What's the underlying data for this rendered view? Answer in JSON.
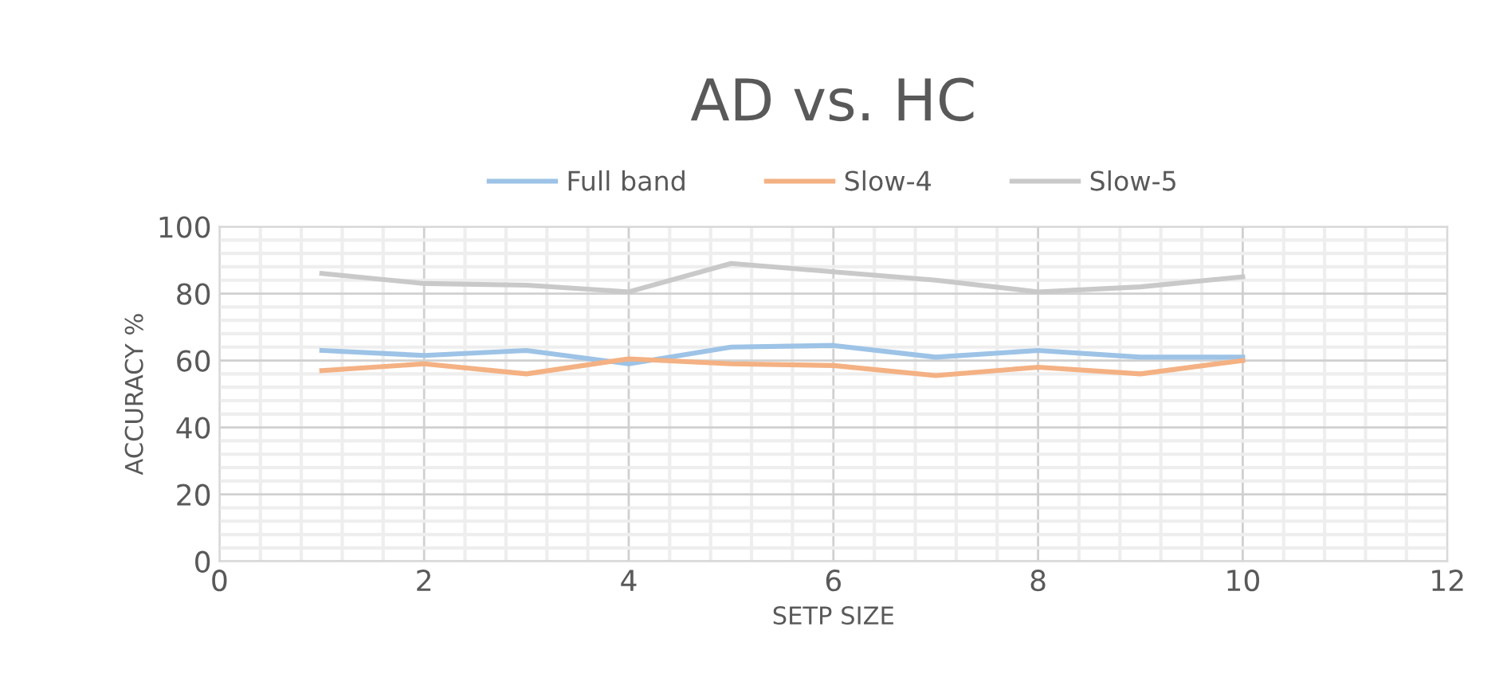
{
  "chart_data": {
    "type": "line",
    "title": "AD vs. HC",
    "xlabel": "SETP SIZE",
    "ylabel": "ACCURACY %",
    "x": [
      1,
      2,
      3,
      4,
      5,
      6,
      7,
      8,
      9,
      10
    ],
    "series": [
      {
        "name": "Full band",
        "color": "#9dc3e6",
        "values": [
          63,
          61.5,
          63,
          59,
          64,
          64.5,
          61,
          63,
          61,
          61
        ]
      },
      {
        "name": "Slow-4",
        "color": "#f4b183",
        "values": [
          57,
          59,
          56,
          60.5,
          59,
          58.5,
          55.5,
          58,
          56,
          60
        ]
      },
      {
        "name": "Slow-5",
        "color": "#c9c9c9",
        "values": [
          86,
          83,
          82.5,
          80.5,
          89,
          86.5,
          84,
          80.5,
          82,
          85
        ]
      }
    ],
    "xlim": [
      0,
      12
    ],
    "xticks": [
      0,
      2,
      4,
      6,
      8,
      10,
      12
    ],
    "ylim": [
      0,
      100
    ],
    "yticks": [
      0,
      20,
      40,
      60,
      80,
      100
    ],
    "grid": true,
    "legend": "top",
    "marker": "none",
    "line_style": "solid"
  }
}
